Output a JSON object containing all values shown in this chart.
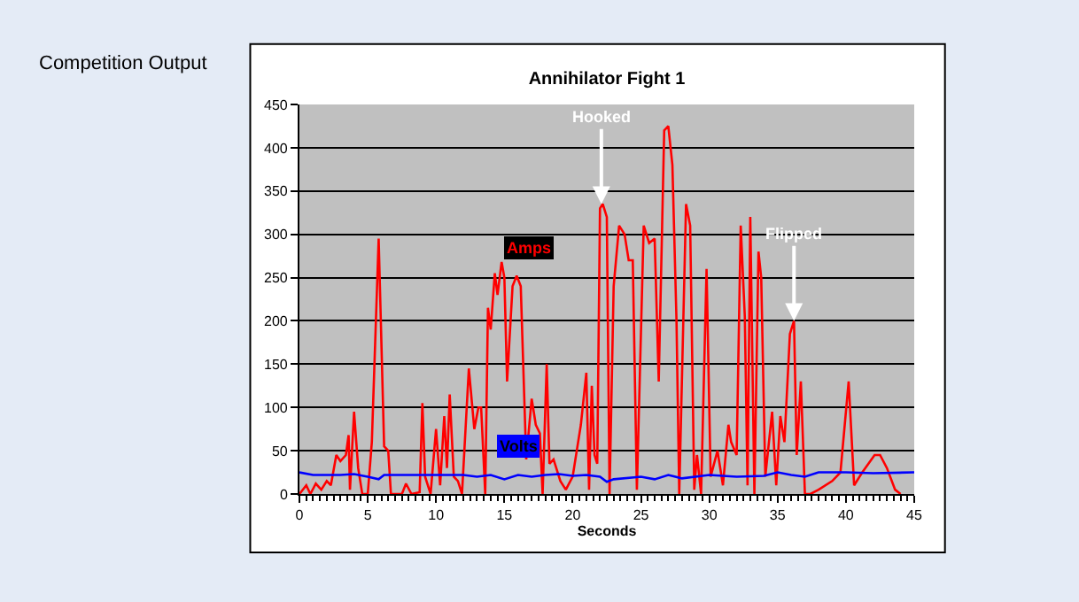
{
  "chart_data": {
    "type": "line",
    "title": "Annihilator Fight 1",
    "xlabel": "Seconds",
    "xlim": [
      0,
      45
    ],
    "xticks": [
      0,
      5,
      10,
      15,
      20,
      25,
      30,
      35,
      40,
      45
    ],
    "ylim": [
      0,
      450
    ],
    "yticks": [
      0,
      50,
      100,
      150,
      200,
      250,
      300,
      350,
      400,
      450
    ],
    "grid": "y",
    "legend": false,
    "marker": "none",
    "line_style": "solid",
    "annotations": [
      "Competition Output",
      {
        "text": "Hooked",
        "x": 22.1,
        "y": 335
      },
      {
        "text": "Flipped",
        "x": 36.2,
        "y": 200
      }
    ],
    "series": [
      {
        "name": "Amps",
        "color": "#ff0000",
        "x": [
          0,
          0.5,
          0.8,
          1.2,
          1.6,
          2,
          2.3,
          2.7,
          3.0,
          3.4,
          3.6,
          3.7,
          4.0,
          4.3,
          4.6,
          5.0,
          5.3,
          5.8,
          6.2,
          6.5,
          6.7,
          7.5,
          7.8,
          8.2,
          8.8,
          9.0,
          9.2,
          9.6,
          10.0,
          10.3,
          10.6,
          10.8,
          11.0,
          11.3,
          11.6,
          11.9,
          12.4,
          12.8,
          13.1,
          13.3,
          13.6,
          13.8,
          14.0,
          14.3,
          14.5,
          14.8,
          15.0,
          15.2,
          15.6,
          15.9,
          16.2,
          16.6,
          17.0,
          17.3,
          17.6,
          17.8,
          18.1,
          18.3,
          18.6,
          19.1,
          19.5,
          20.0,
          20.6,
          21.0,
          21.2,
          21.4,
          21.6,
          21.8,
          22.0,
          22.2,
          22.5,
          22.7,
          23.0,
          23.4,
          23.8,
          24.1,
          24.4,
          24.7,
          25.2,
          25.6,
          26.0,
          26.3,
          26.7,
          27.0,
          27.3,
          27.6,
          27.8,
          28.3,
          28.6,
          28.9,
          29.1,
          29.4,
          29.8,
          30.1,
          30.6,
          31.0,
          31.4,
          31.6,
          32.0,
          32.3,
          32.6,
          32.8,
          33.0,
          33.3,
          33.6,
          33.8,
          34.1,
          34.6,
          34.9,
          35.2,
          35.5,
          35.9,
          36.2,
          36.4,
          36.7,
          37.0,
          37.4,
          38.0,
          39.0,
          39.6,
          40.2,
          40.6,
          41.2,
          42.1,
          42.5,
          43.0,
          43.6,
          44
        ],
        "values": [
          0,
          10,
          0,
          12,
          5,
          15,
          10,
          45,
          38,
          45,
          68,
          5,
          95,
          30,
          0,
          0,
          60,
          295,
          55,
          50,
          0,
          0,
          12,
          0,
          2,
          105,
          20,
          0,
          75,
          10,
          90,
          30,
          115,
          20,
          15,
          0,
          145,
          75,
          100,
          100,
          0,
          215,
          190,
          255,
          230,
          268,
          250,
          130,
          240,
          252,
          240,
          40,
          110,
          80,
          70,
          0,
          150,
          35,
          40,
          15,
          5,
          20,
          80,
          140,
          5,
          125,
          45,
          35,
          330,
          335,
          320,
          0,
          240,
          310,
          300,
          270,
          270,
          5,
          310,
          290,
          295,
          130,
          420,
          425,
          380,
          200,
          0,
          335,
          310,
          5,
          45,
          0,
          260,
          20,
          50,
          10,
          80,
          60,
          45,
          310,
          205,
          10,
          320,
          0,
          280,
          250,
          20,
          95,
          10,
          90,
          60,
          185,
          200,
          45,
          130,
          0,
          0,
          5,
          15,
          25,
          130,
          10,
          25,
          45,
          45,
          30,
          5,
          0
        ]
      },
      {
        "name": "Volts",
        "color": "#0000ff",
        "x": [
          0,
          1,
          2,
          3,
          4,
          5,
          5.8,
          6.2,
          8,
          10,
          12,
          13,
          14,
          15,
          16,
          17,
          18,
          19,
          20,
          21,
          22,
          22.5,
          23,
          25,
          26,
          27,
          28,
          30,
          32,
          34,
          35,
          36,
          37,
          38,
          40,
          42,
          45
        ],
        "values": [
          25,
          22,
          22,
          22,
          23,
          20,
          17,
          22,
          22,
          22,
          22,
          20,
          22,
          17,
          22,
          20,
          22,
          23,
          21,
          22,
          20,
          14,
          17,
          20,
          17,
          22,
          18,
          22,
          20,
          21,
          25,
          22,
          20,
          25,
          25,
          24,
          25
        ]
      }
    ]
  }
}
